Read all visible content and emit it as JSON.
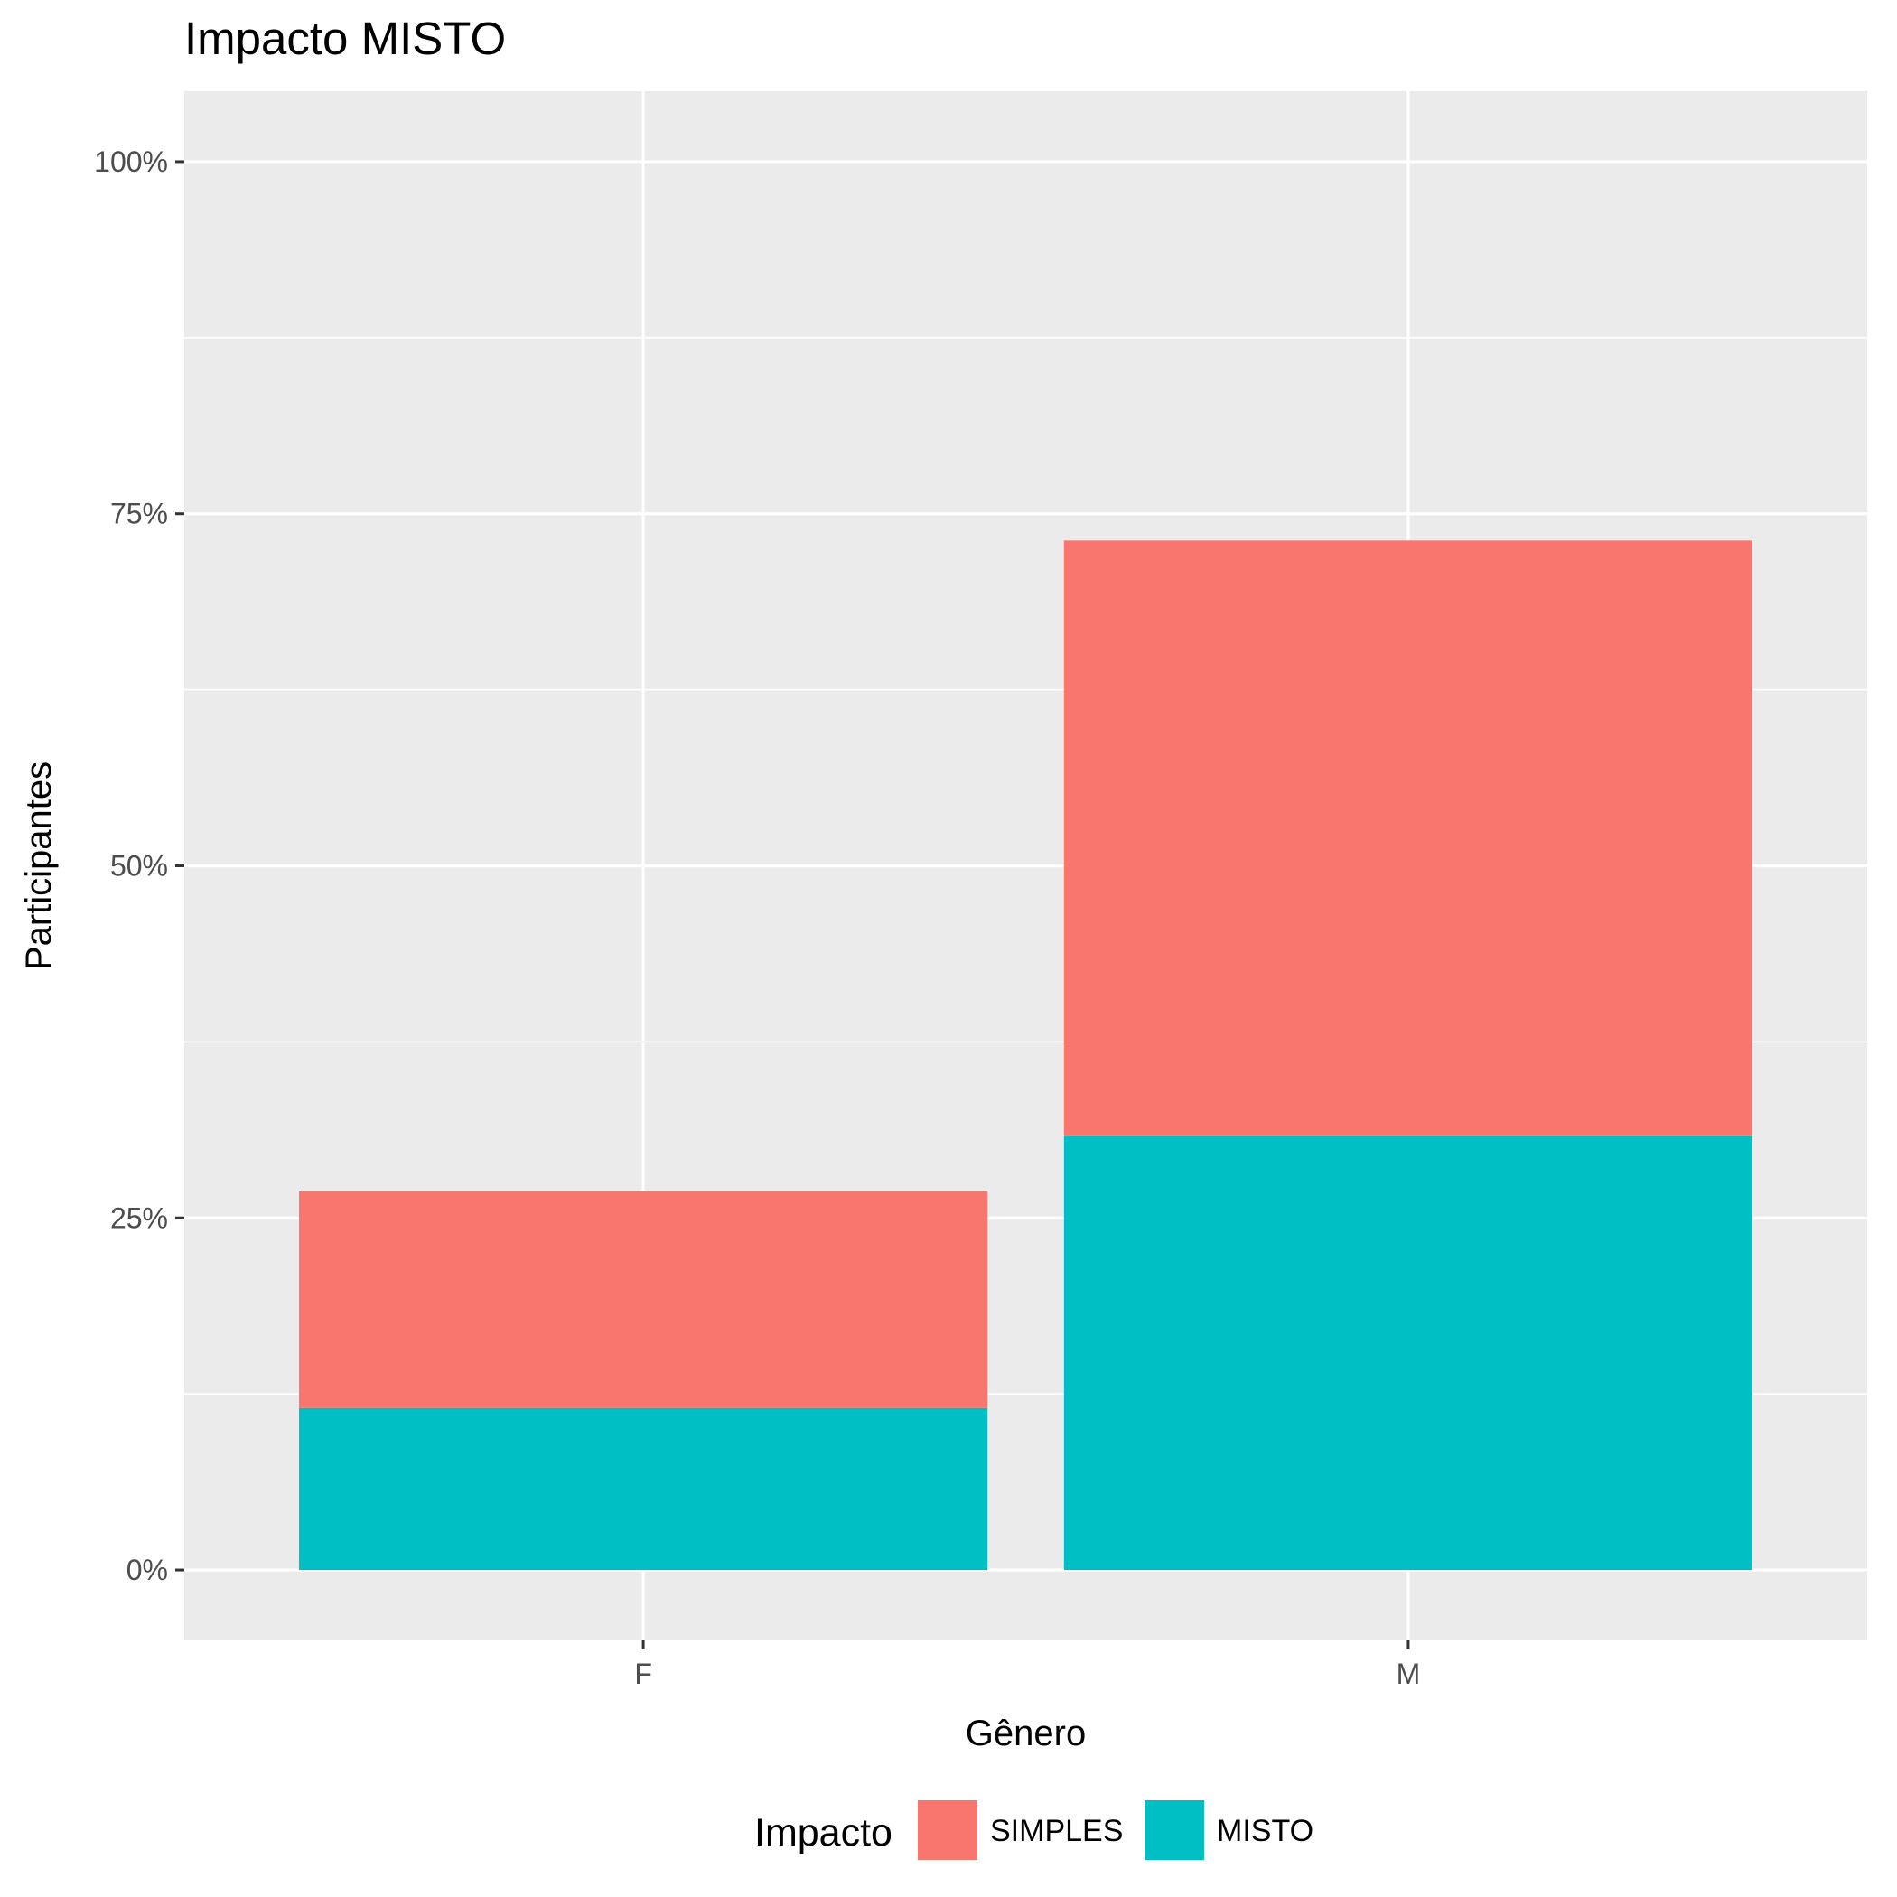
{
  "chart_data": {
    "type": "bar",
    "stacked": true,
    "title": "Impacto MISTO",
    "xlabel": "Gênero",
    "ylabel": "Participantes",
    "categories": [
      "F",
      "M"
    ],
    "series": [
      {
        "name": "SIMPLES",
        "color": "#F8766D",
        "values": [
          15.4,
          42.3
        ]
      },
      {
        "name": "MISTO",
        "color": "#00BFC4",
        "values": [
          11.5,
          30.8
        ]
      }
    ],
    "ylim": [
      -5,
      105
    ],
    "y_ticks": [
      0,
      25,
      50,
      75,
      100
    ],
    "y_tick_labels": [
      "0%",
      "25%",
      "50%",
      "75%",
      "100%"
    ],
    "y_unit": "percent",
    "grid": true,
    "panel_background": "#EBEBEB",
    "legend": {
      "title": "Impacto",
      "position": "bottom",
      "items": [
        "SIMPLES",
        "MISTO"
      ]
    }
  }
}
